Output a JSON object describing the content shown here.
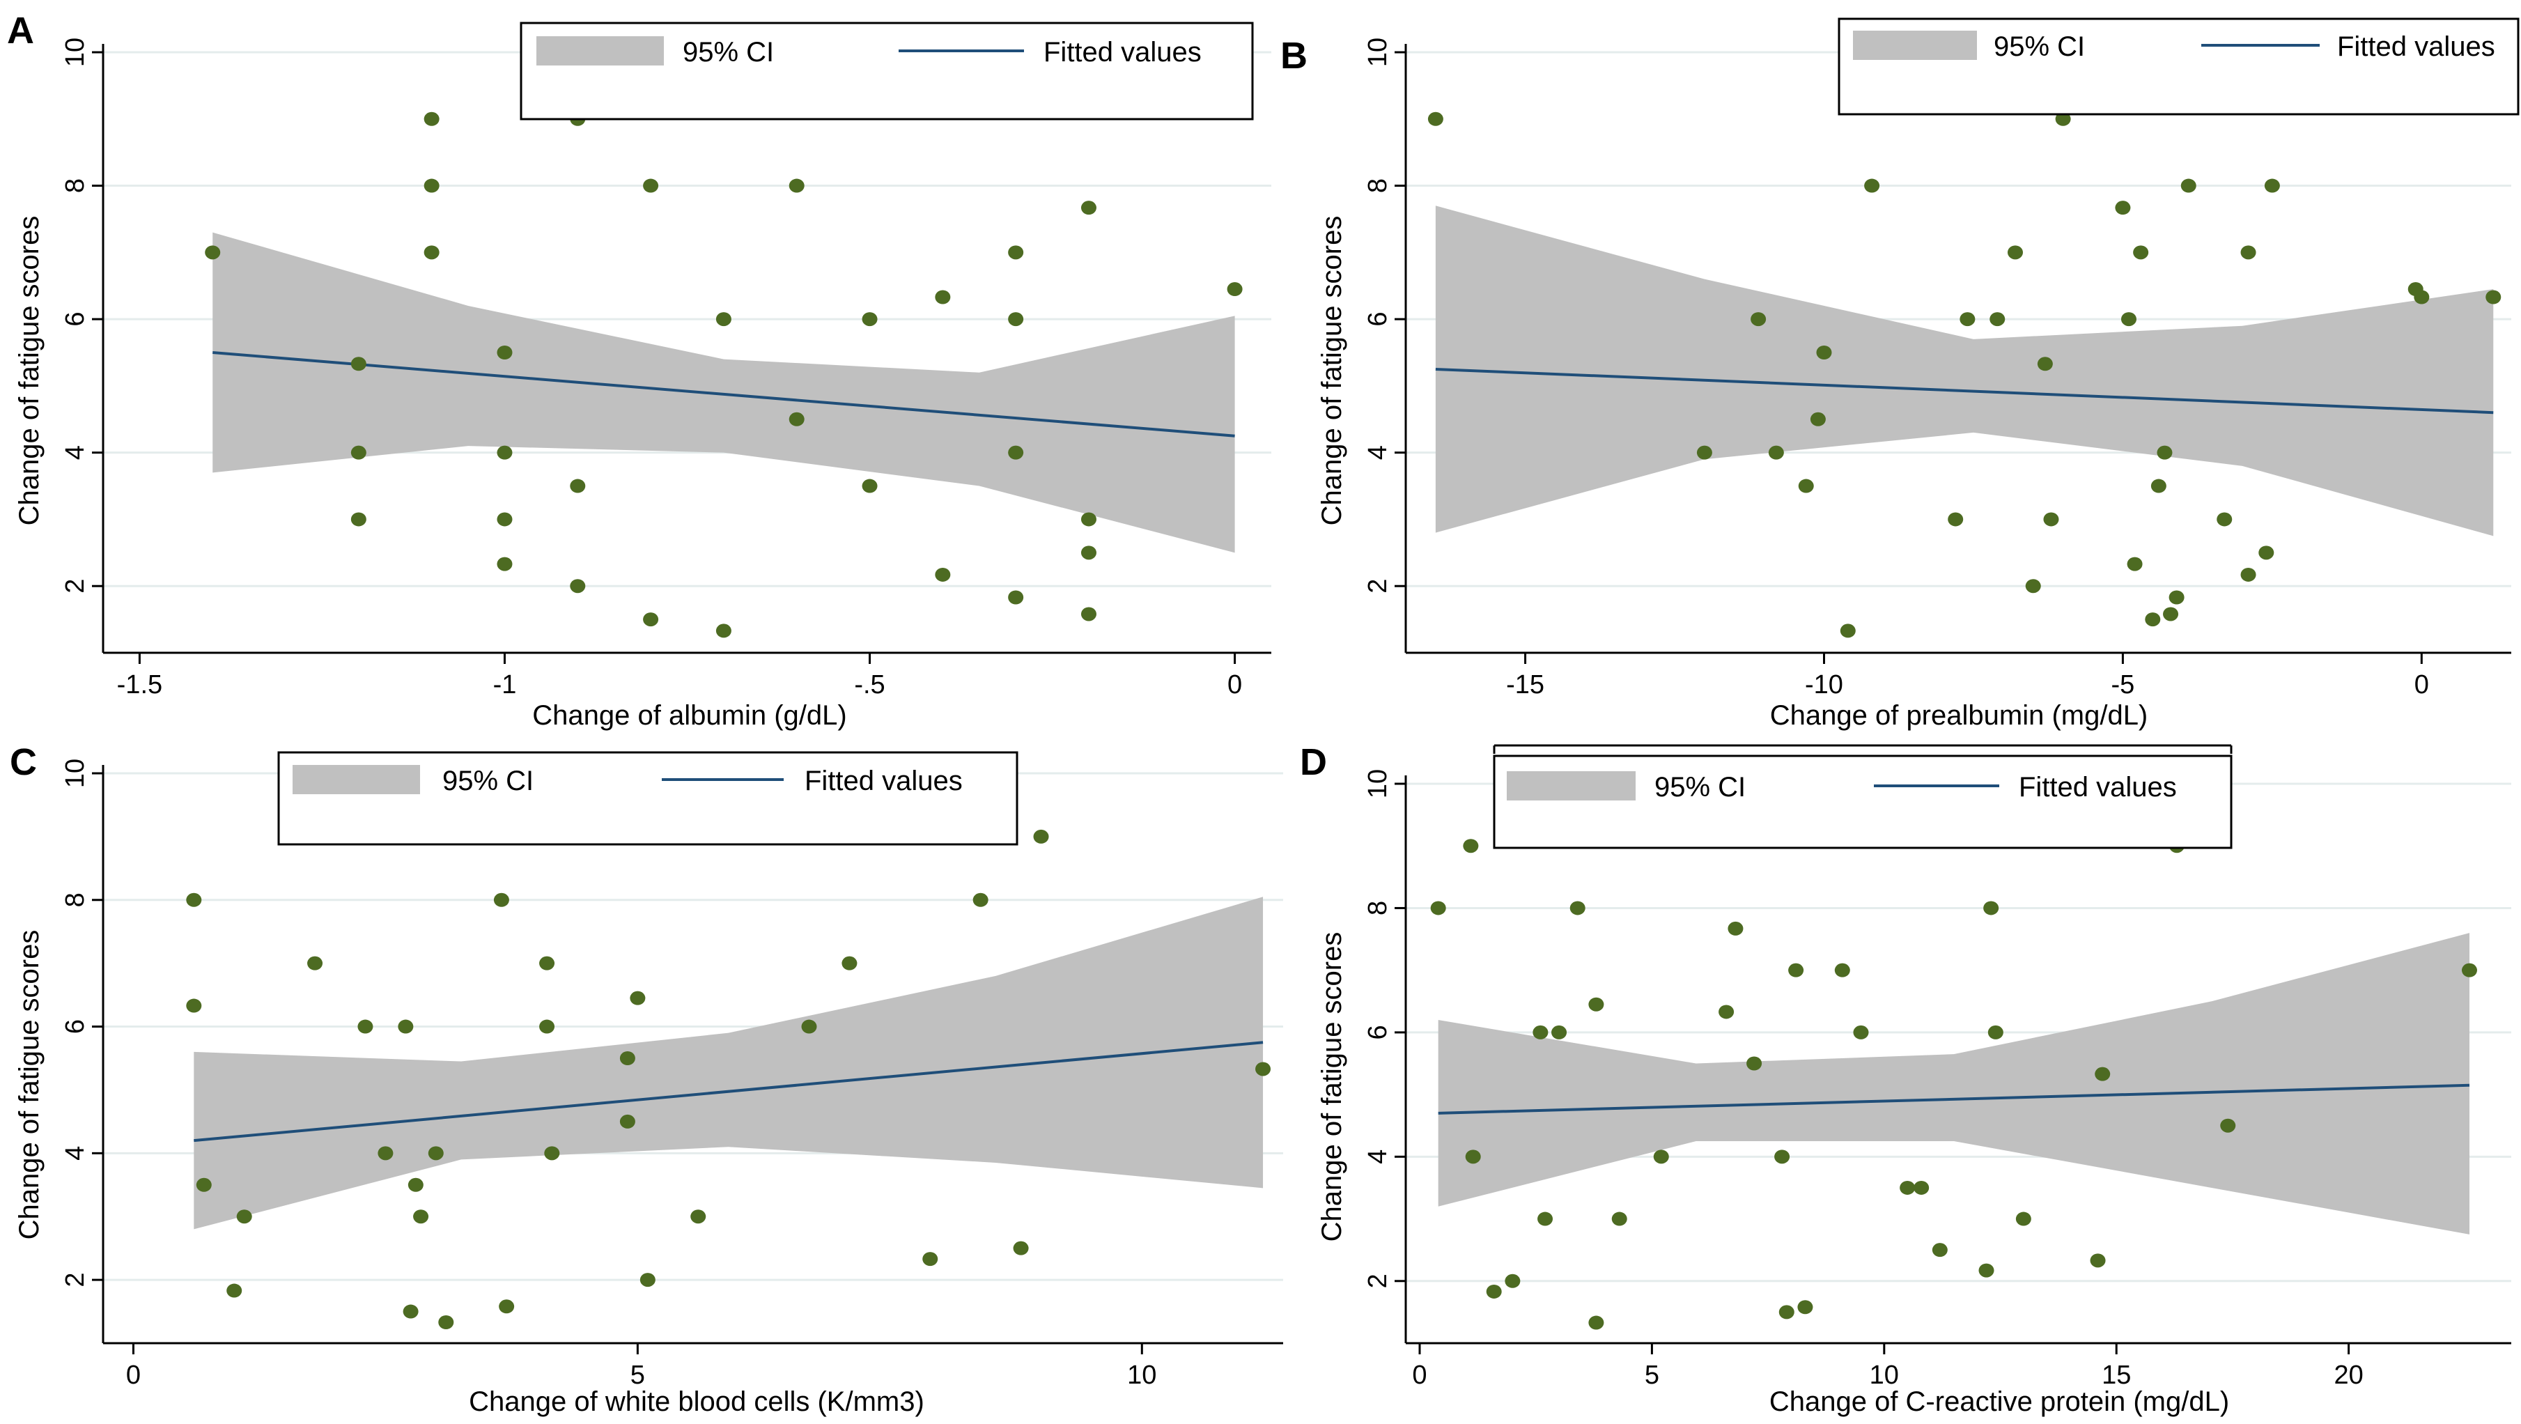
{
  "figure": {
    "background": "#ffffff"
  },
  "colors": {
    "point": "#4d6b22",
    "fit": "#1f4e79",
    "ci": "#c0c0c0",
    "grid": "#e4ecec",
    "axis": "#000000"
  },
  "chart_data": [
    {
      "panel": "A",
      "type": "scatter",
      "xlabel": "Change of albumin (g/dL)",
      "ylabel": "Change of fatigue scores",
      "xlim": [
        -1.55,
        0.05
      ],
      "ylim": [
        1,
        10
      ],
      "xticks": [
        -1.5,
        -1,
        -0.5,
        0
      ],
      "xticklabels": [
        "-1.5",
        "-1",
        "-.5",
        "0"
      ],
      "yticks": [
        2,
        4,
        6,
        8,
        10
      ],
      "yticklabels": [
        "2",
        "4",
        "6",
        "8",
        "10"
      ],
      "legend": {
        "position": "top-center",
        "ci_label": "95% CI",
        "fit_label": "Fitted values"
      },
      "points": {
        "x": [
          -1.4,
          -1.2,
          -1.2,
          -1.2,
          -1.1,
          -1.1,
          -1.1,
          -1,
          -1,
          -1,
          -1,
          -0.9,
          -0.9,
          -0.9,
          -0.8,
          -0.8,
          -0.7,
          -0.7,
          -0.6,
          -0.6,
          -0.5,
          -0.5,
          -0.4,
          -0.4,
          -0.3,
          -0.3,
          -0.3,
          -0.3,
          -0.2,
          -0.2,
          -0.2,
          -0.2,
          0
        ],
        "y": [
          7,
          5.33,
          4,
          3,
          9,
          8,
          7,
          5.5,
          4,
          3,
          2.33,
          9,
          3.5,
          2,
          8,
          1.5,
          6,
          1.33,
          8,
          4.5,
          6,
          3.5,
          6.33,
          2.17,
          7,
          6,
          4,
          1.83,
          7.67,
          3,
          2.5,
          1.58,
          6.45
        ]
      },
      "fit": {
        "x": [
          -1.4,
          0
        ],
        "y": [
          5.5,
          4.25
        ]
      },
      "ci": {
        "x": [
          -1.4,
          -1.05,
          -0.7,
          -0.35,
          0
        ],
        "lower": [
          3.7,
          4.1,
          4.0,
          3.5,
          2.5
        ],
        "upper": [
          7.3,
          6.2,
          5.4,
          5.2,
          6.05
        ]
      }
    },
    {
      "panel": "B",
      "type": "scatter",
      "xlabel": "Change of prealbumin (mg/dL)",
      "ylabel": "Change of fatigue scores",
      "xlim": [
        -17,
        1.5
      ],
      "ylim": [
        1,
        10
      ],
      "xticks": [
        -15,
        -10,
        -5,
        0
      ],
      "xticklabels": [
        "-15",
        "-10",
        "-5",
        "0"
      ],
      "yticks": [
        2,
        4,
        6,
        8,
        10
      ],
      "yticklabels": [
        "2",
        "4",
        "6",
        "8",
        "10"
      ],
      "legend": {
        "position": "top-right",
        "ci_label": "95% CI",
        "fit_label": "Fitted values"
      },
      "points": {
        "x": [
          -16.5,
          -12,
          -11.1,
          -10.8,
          -10.3,
          -10.1,
          -10,
          -9.6,
          -9.2,
          -7.8,
          -7.6,
          -7.1,
          -6.8,
          -6.5,
          -6.3,
          -6.2,
          -6.0,
          -5.0,
          -4.9,
          -4.8,
          -4.7,
          -4.5,
          -4.4,
          -4.3,
          -4.2,
          -4.1,
          -3.9,
          -3.3,
          -2.9,
          -2.9,
          -2.6,
          -2.5,
          -0.1,
          0,
          1.2
        ],
        "y": [
          9,
          4,
          6,
          4,
          3.5,
          4.5,
          5.5,
          1.33,
          8,
          3,
          6,
          6,
          7,
          2,
          5.33,
          3,
          9,
          7.67,
          6,
          2.33,
          7,
          1.5,
          3.5,
          4,
          1.58,
          1.83,
          8,
          3,
          2.17,
          7,
          2.5,
          8,
          6.45,
          6.33,
          6.33
        ],
        "y_note": "read off gridlines"
      },
      "fit": {
        "x": [
          -16.5,
          1.2
        ],
        "y": [
          5.25,
          4.6
        ]
      },
      "ci": {
        "x": [
          -16.5,
          -12,
          -7.5,
          -3,
          1.2
        ],
        "lower": [
          2.8,
          3.9,
          4.3,
          3.8,
          2.75
        ],
        "upper": [
          7.7,
          6.6,
          5.7,
          5.9,
          6.45
        ]
      }
    },
    {
      "panel": "C",
      "type": "scatter",
      "xlabel": "Change of white blood cells (K/mm3)",
      "ylabel": "Change of fatigue scores",
      "xlim": [
        -0.3,
        11.4
      ],
      "ylim": [
        1,
        10
      ],
      "xticks": [
        0,
        5,
        10
      ],
      "xticklabels": [
        "0",
        "5",
        "10"
      ],
      "yticks": [
        2,
        4,
        6,
        8,
        10
      ],
      "yticklabels": [
        "2",
        "4",
        "6",
        "8",
        "10"
      ],
      "legend": {
        "position": "top-center",
        "ci_label": "95% CI",
        "fit_label": "Fitted values"
      },
      "points": {
        "x": [
          0.6,
          0.6,
          0.7,
          1.0,
          1.1,
          1.8,
          2.3,
          2.5,
          2.7,
          2.75,
          2.8,
          2.85,
          3.0,
          3.1,
          3.65,
          3.7,
          4.1,
          4.1,
          4.15,
          4.9,
          4.9,
          5.0,
          5.1,
          5.6,
          6.7,
          7.1,
          7.9,
          8.4,
          8.8,
          9.0,
          11.2
        ],
        "y": [
          8,
          6.33,
          3.5,
          1.83,
          3,
          7,
          6,
          4,
          6,
          1.5,
          3.5,
          3,
          4,
          1.33,
          8,
          1.58,
          7,
          6,
          4,
          5.5,
          4.5,
          6.45,
          2,
          3,
          6,
          7,
          2.33,
          8,
          2.5,
          9,
          5.33
        ]
      },
      "fit": {
        "x": [
          0.6,
          11.2
        ],
        "y": [
          4.2,
          5.75
        ]
      },
      "ci": {
        "x": [
          0.6,
          3.25,
          5.9,
          8.55,
          11.2
        ],
        "lower": [
          2.8,
          3.9,
          4.1,
          3.85,
          3.45
        ],
        "upper": [
          5.6,
          5.45,
          5.9,
          6.8,
          8.05
        ]
      }
    },
    {
      "panel": "D",
      "type": "scatter",
      "xlabel": "Change of C-reactive protein (mg/dL)",
      "ylabel": "Change of fatigue scores",
      "xlim": [
        -0.3,
        23.5
      ],
      "ylim": [
        1,
        10
      ],
      "xticks": [
        0,
        5,
        10,
        15,
        20
      ],
      "xticklabels": [
        "0",
        "5",
        "10",
        "15",
        "20"
      ],
      "yticks": [
        2,
        4,
        6,
        8,
        10
      ],
      "yticklabels": [
        "2",
        "4",
        "6",
        "8",
        "10"
      ],
      "legend": {
        "position": "top-center",
        "ci_label": "95% CI",
        "fit_label": "Fitted values"
      },
      "points": {
        "x": [
          0.4,
          1.1,
          1.15,
          1.6,
          2.0,
          2.6,
          2.7,
          3.0,
          3.4,
          3.8,
          3.8,
          4.3,
          5.2,
          6.6,
          6.8,
          7.2,
          7.8,
          7.9,
          8.1,
          8.3,
          9.1,
          9.5,
          10.5,
          10.8,
          11.2,
          12.2,
          12.3,
          12.4,
          13.0,
          14.6,
          14.7,
          16.3,
          17.4,
          22.6
        ],
        "y": [
          8,
          9,
          4,
          1.83,
          2,
          6,
          3,
          6,
          8,
          6.45,
          1.33,
          3,
          4,
          6.33,
          7.67,
          5.5,
          4,
          1.5,
          7,
          1.58,
          7,
          6,
          3.5,
          3.5,
          2.5,
          2.17,
          8,
          6,
          3,
          2.33,
          5.33,
          9,
          4.5,
          7
        ]
      },
      "fit": {
        "x": [
          0.4,
          22.6
        ],
        "y": [
          4.7,
          5.15
        ]
      },
      "ci": {
        "x": [
          0.4,
          5.95,
          11.5,
          17.05,
          22.6
        ],
        "lower": [
          3.2,
          4.25,
          4.25,
          3.5,
          2.75
        ],
        "upper": [
          6.2,
          5.5,
          5.65,
          6.5,
          7.6
        ]
      }
    }
  ]
}
